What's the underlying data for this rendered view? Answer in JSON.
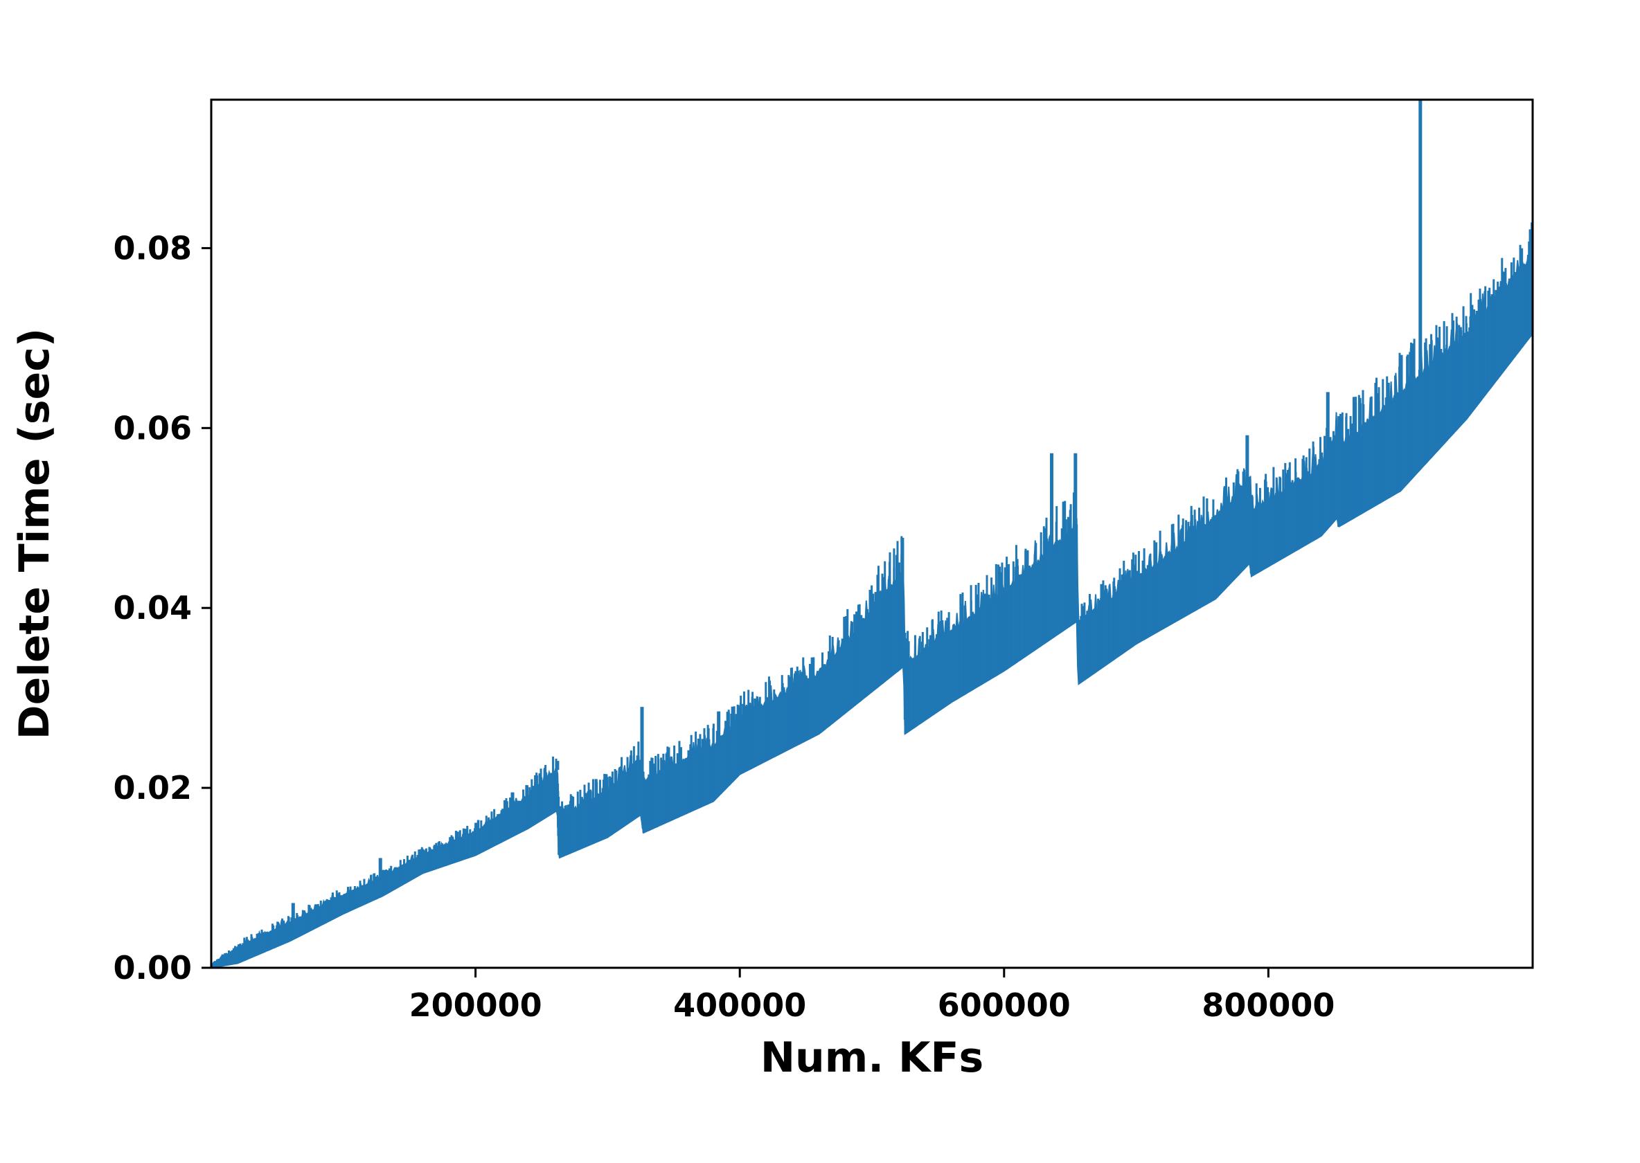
{
  "chart_data": {
    "type": "line",
    "title": "",
    "xlabel": "Num. KFs",
    "ylabel": "Delete Time (sec)",
    "xlim": [
      0,
      1000000
    ],
    "ylim": [
      0,
      0.0965
    ],
    "x_ticks": [
      200000,
      400000,
      600000,
      800000
    ],
    "x_tick_labels": [
      "200000",
      "400000",
      "600000",
      "800000"
    ],
    "y_ticks": [
      0.0,
      0.02,
      0.04,
      0.06,
      0.08
    ],
    "y_tick_labels": [
      "0.00",
      "0.02",
      "0.04",
      "0.06",
      "0.08"
    ],
    "grid": false,
    "legend": "none",
    "series": [
      {
        "color": "#1f77b4",
        "style": "dense noisy band",
        "lower_envelope": {
          "x": [
            0,
            20000,
            60000,
            100000,
            130000,
            160000,
            200000,
            240000,
            262000,
            263000,
            300000,
            325000,
            327000,
            380000,
            400000,
            460000,
            524000,
            525000,
            560000,
            600000,
            655000,
            656000,
            700000,
            760000,
            786000,
            787000,
            840000,
            852000,
            853000,
            900000,
            950000,
            1000000
          ],
          "y": [
            0.0,
            0.0005,
            0.003,
            0.006,
            0.008,
            0.0105,
            0.0125,
            0.0155,
            0.0175,
            0.0122,
            0.0145,
            0.017,
            0.015,
            0.0185,
            0.0215,
            0.026,
            0.0335,
            0.026,
            0.0295,
            0.033,
            0.0385,
            0.0315,
            0.036,
            0.041,
            0.045,
            0.0435,
            0.048,
            0.05,
            0.049,
            0.053,
            0.061,
            0.0705
          ]
        },
        "upper_envelope": {
          "x": [
            0,
            20000,
            60000,
            100000,
            130000,
            160000,
            200000,
            240000,
            262000,
            263000,
            300000,
            325000,
            327000,
            380000,
            400000,
            460000,
            524000,
            525000,
            560000,
            600000,
            655000,
            656000,
            700000,
            760000,
            786000,
            787000,
            840000,
            852000,
            853000,
            900000,
            950000,
            1000000
          ],
          "y": [
            0.0003,
            0.0022,
            0.005,
            0.008,
            0.01,
            0.0125,
            0.015,
            0.019,
            0.022,
            0.0165,
            0.0195,
            0.023,
            0.0205,
            0.0245,
            0.0275,
            0.0325,
            0.0435,
            0.0335,
            0.037,
            0.0415,
            0.0485,
            0.038,
            0.043,
            0.0495,
            0.054,
            0.0505,
            0.0555,
            0.059,
            0.0575,
            0.0635,
            0.07,
            0.079
          ]
        },
        "spikes": [
          {
            "x": 62000,
            "y": 0.0072
          },
          {
            "x": 128000,
            "y": 0.0122
          },
          {
            "x": 162000,
            "y": 0.013
          },
          {
            "x": 228000,
            "y": 0.0195
          },
          {
            "x": 262000,
            "y": 0.023
          },
          {
            "x": 326000,
            "y": 0.029
          },
          {
            "x": 384000,
            "y": 0.0285
          },
          {
            "x": 455000,
            "y": 0.0345
          },
          {
            "x": 523000,
            "y": 0.0478
          },
          {
            "x": 636000,
            "y": 0.0572
          },
          {
            "x": 654000,
            "y": 0.0572
          },
          {
            "x": 784000,
            "y": 0.0592
          },
          {
            "x": 845000,
            "y": 0.064
          },
          {
            "x": 915000,
            "y": 0.0965
          },
          {
            "x": 998000,
            "y": 0.08
          }
        ]
      }
    ]
  }
}
